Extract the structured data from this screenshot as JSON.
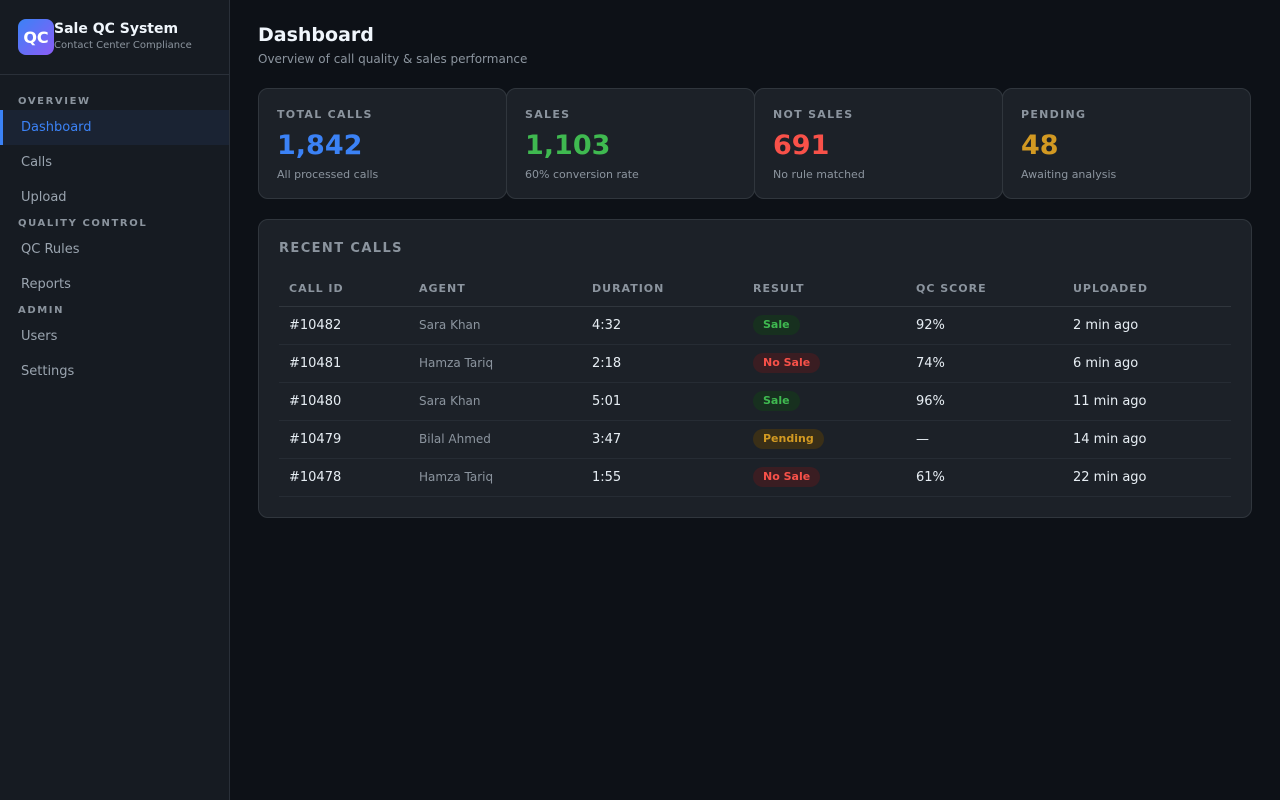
{
  "brand": {
    "logo_text": "QC",
    "title": "Sale QC System",
    "subtitle": "Contact Center Compliance"
  },
  "sidebar": {
    "sections": [
      {
        "label": "OVERVIEW",
        "items": [
          {
            "label": "Dashboard",
            "active": true
          },
          {
            "label": "Calls"
          },
          {
            "label": "Upload"
          }
        ]
      },
      {
        "label": "QUALITY CONTROL",
        "items": [
          {
            "label": "QC Rules"
          },
          {
            "label": "Reports"
          }
        ]
      },
      {
        "label": "ADMIN",
        "items": [
          {
            "label": "Users"
          },
          {
            "label": "Settings"
          }
        ]
      }
    ]
  },
  "header": {
    "title": "Dashboard",
    "subtitle": "Overview of call quality & sales performance"
  },
  "stats": [
    {
      "label": "TOTAL CALLS",
      "value": "1,842",
      "desc": "All processed calls",
      "color": "#3b82f6"
    },
    {
      "label": "SALES",
      "value": "1,103",
      "desc": "60% conversion rate",
      "color": "#3fb950"
    },
    {
      "label": "NOT SALES",
      "value": "691",
      "desc": "No rule matched",
      "color": "#f85149"
    },
    {
      "label": "PENDING",
      "value": "48",
      "desc": "Awaiting analysis",
      "color": "#d29922"
    }
  ],
  "recent_calls": {
    "title": "RECENT CALLS",
    "columns": [
      "CALL ID",
      "AGENT",
      "DURATION",
      "RESULT",
      "QC SCORE",
      "UPLOADED"
    ],
    "rows": [
      {
        "id": "#10482",
        "agent": "Sara Khan",
        "duration": "4:32",
        "result": "Sale",
        "result_type": "sale",
        "score": "92%",
        "uploaded": "2 min ago"
      },
      {
        "id": "#10481",
        "agent": "Hamza Tariq",
        "duration": "2:18",
        "result": "No Sale",
        "result_type": "nosale",
        "score": "74%",
        "uploaded": "6 min ago"
      },
      {
        "id": "#10480",
        "agent": "Sara Khan",
        "duration": "5:01",
        "result": "Sale",
        "result_type": "sale",
        "score": "96%",
        "uploaded": "11 min ago"
      },
      {
        "id": "#10479",
        "agent": "Bilal Ahmed",
        "duration": "3:47",
        "result": "Pending",
        "result_type": "pending",
        "score": "—",
        "uploaded": "14 min ago"
      },
      {
        "id": "#10478",
        "agent": "Hamza Tariq",
        "duration": "1:55",
        "result": "No Sale",
        "result_type": "nosale",
        "score": "61%",
        "uploaded": "22 min ago"
      }
    ]
  }
}
